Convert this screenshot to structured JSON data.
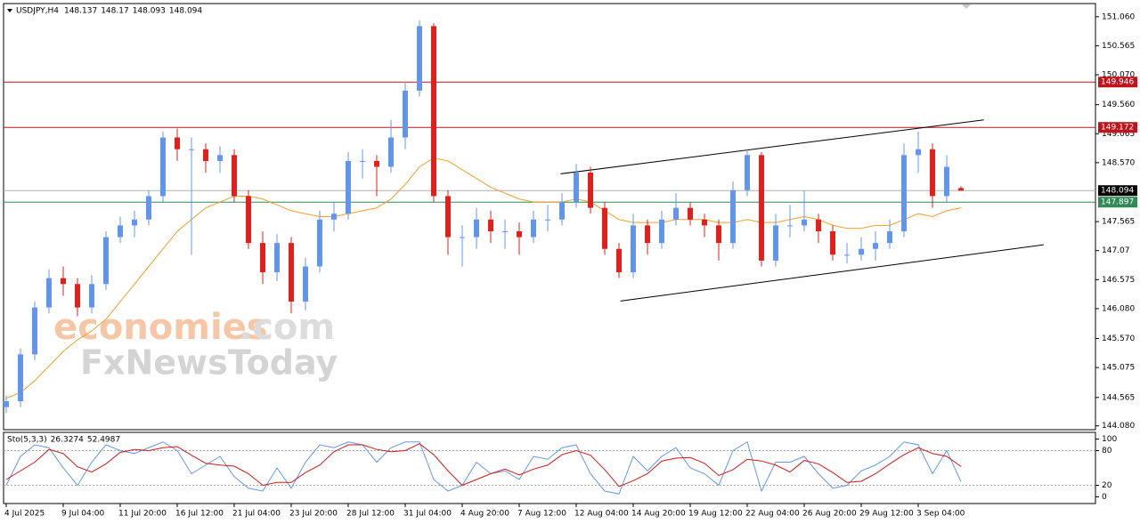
{
  "chart_data": {
    "type": "candlestick",
    "title": "USDJPY,H4",
    "ylim": [
      144.03,
      151.27
    ],
    "yticks": [
      {
        "value": 151.06,
        "label": "151.060"
      },
      150.565,
      {
        "value": 150.07,
        "label": "150.070"
      },
      {
        "value": 149.56,
        "label": "149.560"
      },
      149.065,
      {
        "value": 148.57,
        "label": "148.570"
      },
      147.565,
      147.07,
      146.575,
      {
        "value": 146.08,
        "label": "146.080"
      },
      {
        "value": 145.57,
        "label": "145.570"
      },
      145.075,
      144.565,
      {
        "value": 144.08,
        "label": "144.080"
      }
    ],
    "xticks": [
      {
        "value": 0,
        "label": "4 Jul 2025"
      },
      {
        "value": 4,
        "label": "9 Jul 04:00"
      },
      {
        "value": 8,
        "label": "11 Jul 20:00"
      },
      {
        "value": 12,
        "label": "16 Jul 12:00"
      },
      {
        "value": 16,
        "label": "21 Jul 04:00"
      },
      {
        "value": 20,
        "label": "23 Jul 20:00"
      },
      {
        "value": 24,
        "label": "28 Jul 12:00"
      },
      {
        "value": 28,
        "label": "31 Jul 04:00"
      },
      {
        "value": 32,
        "label": "4 Aug 20:00"
      },
      {
        "value": 36,
        "label": "7 Aug 12:00"
      },
      {
        "value": 40,
        "label": "12 Aug 04:00"
      },
      {
        "value": 44,
        "label": "14 Aug 20:00"
      },
      {
        "value": 48,
        "label": "19 Aug 12:00"
      },
      {
        "value": 52,
        "label": "22 Aug 04:00"
      },
      {
        "value": 56,
        "label": "26 Aug 20:00"
      },
      {
        "value": 60,
        "label": "29 Aug 12:00"
      },
      {
        "value": 64,
        "label": "3 Sep 04:00"
      }
    ],
    "up_color": "#6495ed",
    "down_color": "#e0201b",
    "candles": [
      [
        144.4,
        144.6,
        144.3,
        144.5
      ],
      [
        144.5,
        145.4,
        144.4,
        145.3
      ],
      [
        145.3,
        146.2,
        145.2,
        146.1
      ],
      [
        146.1,
        146.75,
        146.0,
        146.6
      ],
      [
        146.6,
        146.8,
        146.3,
        146.5
      ],
      [
        146.5,
        146.6,
        145.95,
        146.1
      ],
      [
        146.1,
        146.65,
        146.0,
        146.5
      ],
      [
        146.5,
        147.4,
        146.4,
        147.3
      ],
      [
        147.3,
        147.65,
        147.2,
        147.5
      ],
      [
        147.5,
        147.75,
        147.3,
        147.6
      ],
      [
        147.6,
        148.1,
        147.5,
        148.0
      ],
      [
        148.0,
        149.1,
        147.9,
        149.0
      ],
      [
        149.0,
        149.15,
        148.6,
        148.8
      ],
      [
        148.8,
        149.0,
        147.0,
        148.8
      ],
      [
        148.8,
        148.9,
        148.4,
        148.6
      ],
      [
        148.6,
        148.85,
        148.4,
        148.7
      ],
      [
        148.7,
        148.8,
        147.9,
        148.0
      ],
      [
        148.0,
        148.1,
        147.1,
        147.2
      ],
      [
        147.2,
        147.4,
        146.5,
        146.7
      ],
      [
        146.7,
        147.35,
        146.55,
        147.2
      ],
      [
        147.2,
        147.3,
        146.0,
        146.2
      ],
      [
        146.2,
        146.95,
        146.05,
        146.8
      ],
      [
        146.8,
        147.75,
        146.7,
        147.6
      ],
      [
        147.6,
        147.9,
        147.4,
        147.7
      ],
      [
        147.7,
        148.75,
        147.6,
        148.6
      ],
      [
        148.6,
        148.8,
        148.3,
        148.6
      ],
      [
        148.6,
        148.7,
        148.0,
        148.5
      ],
      [
        148.5,
        149.3,
        148.4,
        149.0
      ],
      [
        149.0,
        149.95,
        148.8,
        149.8
      ],
      [
        149.8,
        151.0,
        149.7,
        150.9
      ],
      [
        150.9,
        150.95,
        147.9,
        148.0
      ],
      [
        148.0,
        148.1,
        147.0,
        147.3
      ],
      [
        147.3,
        147.5,
        146.8,
        147.3
      ],
      [
        147.3,
        147.8,
        147.1,
        147.6
      ],
      [
        147.6,
        147.75,
        147.2,
        147.4
      ],
      [
        147.4,
        147.6,
        147.1,
        147.4
      ],
      [
        147.4,
        147.55,
        147.0,
        147.3
      ],
      [
        147.3,
        147.75,
        147.2,
        147.6
      ],
      [
        147.6,
        147.85,
        147.4,
        147.6
      ],
      [
        147.6,
        148.05,
        147.5,
        147.9
      ],
      [
        147.9,
        148.55,
        147.8,
        148.4
      ],
      [
        148.4,
        148.5,
        147.7,
        147.8
      ],
      [
        147.8,
        147.9,
        147.0,
        147.1
      ],
      [
        147.1,
        147.2,
        146.6,
        146.7
      ],
      [
        146.7,
        147.7,
        146.6,
        147.5
      ],
      [
        147.5,
        147.6,
        147.0,
        147.2
      ],
      [
        147.2,
        147.75,
        147.1,
        147.6
      ],
      [
        147.6,
        148.05,
        147.5,
        147.8
      ],
      [
        147.8,
        147.9,
        147.5,
        147.6
      ],
      [
        147.6,
        147.7,
        147.3,
        147.5
      ],
      [
        147.5,
        147.6,
        146.9,
        147.2
      ],
      [
        147.2,
        148.25,
        147.1,
        148.1
      ],
      [
        148.1,
        148.8,
        148.0,
        148.7
      ],
      [
        148.7,
        148.75,
        146.8,
        146.9
      ],
      [
        146.9,
        147.7,
        146.8,
        147.5
      ],
      [
        147.5,
        147.85,
        147.3,
        147.5
      ],
      [
        147.5,
        148.1,
        147.4,
        147.6
      ],
      [
        147.6,
        147.7,
        147.2,
        147.4
      ],
      [
        147.4,
        147.5,
        146.9,
        147.0
      ],
      [
        147.0,
        147.2,
        146.85,
        147.0
      ],
      [
        147.0,
        147.3,
        146.9,
        147.1
      ],
      [
        147.1,
        147.4,
        146.9,
        147.2
      ],
      [
        147.2,
        147.6,
        147.1,
        147.4
      ],
      [
        147.4,
        148.9,
        147.3,
        148.7
      ],
      [
        148.7,
        149.1,
        148.4,
        148.8
      ],
      [
        148.8,
        148.9,
        147.8,
        148.0
      ],
      [
        148.0,
        148.7,
        147.9,
        148.5
      ],
      [
        148.137,
        148.17,
        148.093,
        148.094
      ]
    ],
    "ma": {
      "color": "#f0a030",
      "values": [
        144.55,
        144.65,
        144.85,
        145.1,
        145.35,
        145.55,
        145.7,
        145.9,
        146.2,
        146.5,
        146.8,
        147.1,
        147.4,
        147.6,
        147.8,
        147.9,
        148.0,
        148.0,
        147.95,
        147.85,
        147.75,
        147.7,
        147.65,
        147.65,
        147.7,
        147.75,
        147.8,
        147.95,
        148.2,
        148.5,
        148.65,
        148.6,
        148.45,
        148.3,
        148.15,
        148.05,
        147.95,
        147.9,
        147.9,
        147.9,
        147.95,
        147.9,
        147.75,
        147.6,
        147.55,
        147.55,
        147.55,
        147.6,
        147.6,
        147.6,
        147.55,
        147.55,
        147.6,
        147.55,
        147.55,
        147.6,
        147.65,
        147.6,
        147.5,
        147.45,
        147.45,
        147.5,
        147.5,
        147.6,
        147.7,
        147.65,
        147.75,
        147.8
      ]
    },
    "levels": [
      {
        "value": 149.946,
        "color": "#c0141c"
      },
      {
        "value": 149.172,
        "color": "#c0141c"
      },
      {
        "value": 147.897,
        "color": "#2e8b57"
      }
    ],
    "last_price_color": "#b0b0b0",
    "trendlines": [
      [
        [
          38.9,
          148.38
        ],
        [
          68.6,
          149.3
        ]
      ],
      [
        [
          43.1,
          146.21
        ],
        [
          72.8,
          147.17
        ]
      ]
    ],
    "watermark": [
      "economies",
      ".com",
      "FxNewsToday"
    ],
    "stochastic": {
      "name": "Sto(5,3,3)",
      "ylim": [
        -10,
        110
      ],
      "yticks": [
        100,
        80,
        20,
        0
      ],
      "k": {
        "color": "#6495ed",
        "values": [
          20,
          70,
          90,
          85,
          50,
          20,
          60,
          90,
          80,
          75,
          85,
          95,
          80,
          40,
          55,
          70,
          35,
          15,
          10,
          50,
          15,
          60,
          90,
          85,
          95,
          90,
          60,
          85,
          95,
          95,
          30,
          10,
          20,
          60,
          40,
          45,
          30,
          70,
          65,
          85,
          90,
          40,
          10,
          5,
          70,
          45,
          70,
          85,
          50,
          40,
          20,
          80,
          95,
          10,
          60,
          60,
          70,
          40,
          15,
          20,
          45,
          55,
          70,
          95,
          90,
          40,
          80,
          26.3274
        ]
      },
      "d": {
        "color": "#d01818",
        "values": [
          30,
          45,
          60,
          82,
          75,
          52,
          43,
          57,
          77,
          82,
          80,
          85,
          87,
          72,
          58,
          55,
          53,
          40,
          20,
          25,
          25,
          42,
          55,
          78,
          90,
          90,
          82,
          78,
          80,
          92,
          73,
          45,
          20,
          30,
          40,
          48,
          38,
          48,
          55,
          73,
          80,
          72,
          47,
          18,
          28,
          40,
          62,
          67,
          68,
          58,
          37,
          47,
          65,
          62,
          55,
          43,
          63,
          57,
          42,
          25,
          27,
          40,
          57,
          73,
          85,
          75,
          70,
          52.4987
        ]
      }
    }
  }
}
